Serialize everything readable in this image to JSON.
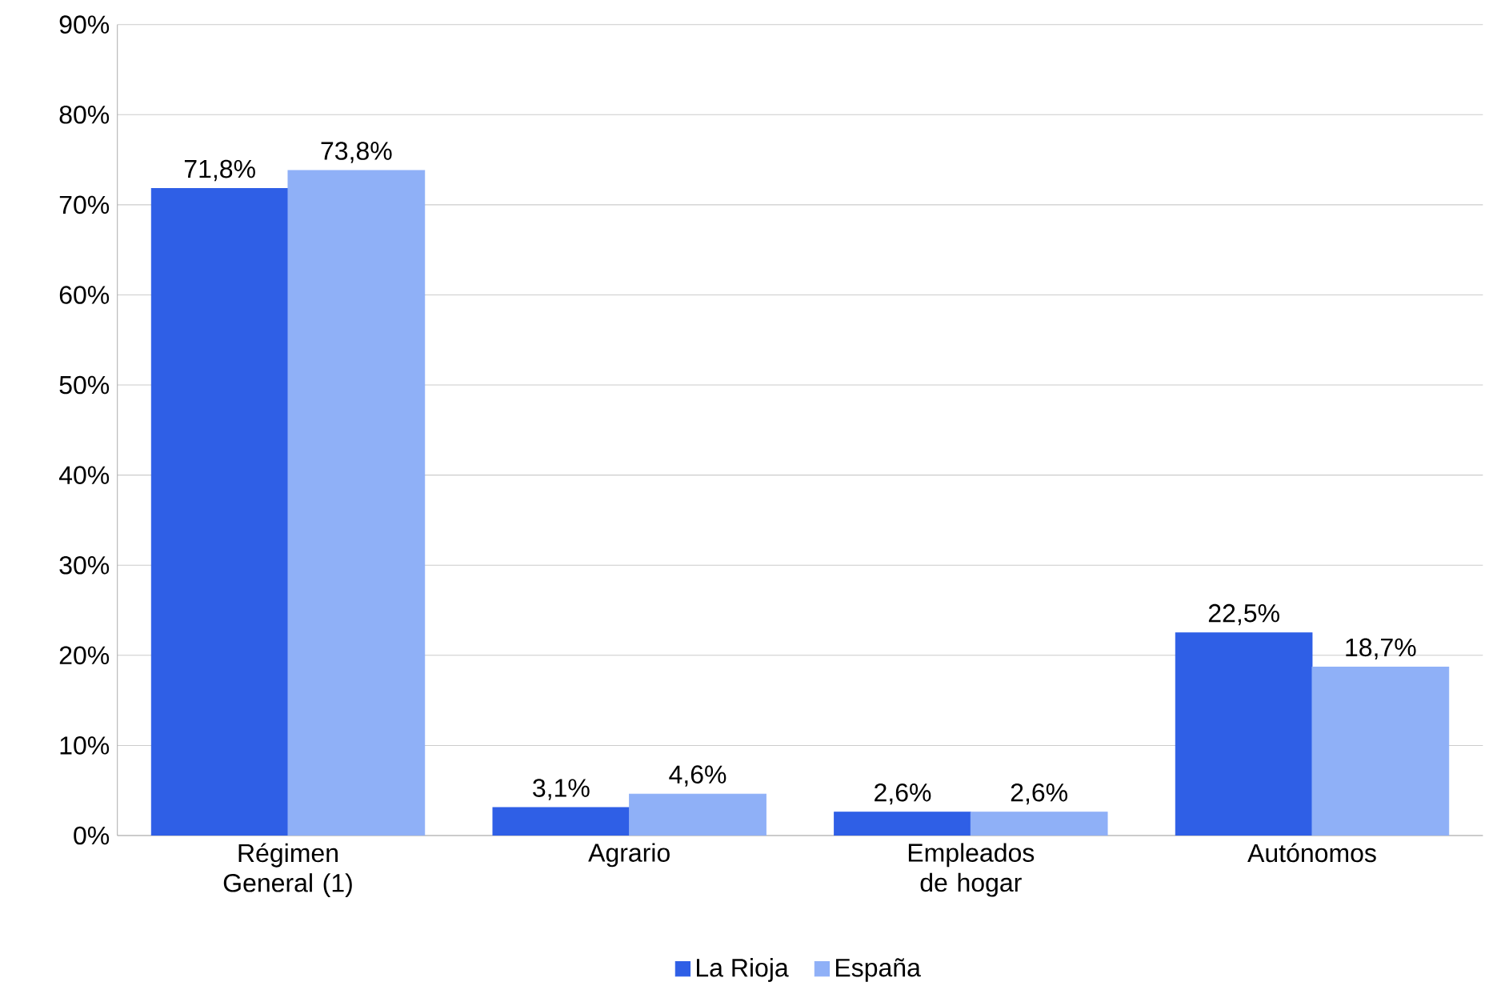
{
  "chart_data": {
    "type": "bar",
    "categories": [
      "Régimen General (1)",
      "Agrario",
      "Empleados de hogar",
      "Autónomos"
    ],
    "series": [
      {
        "name": "La Rioja",
        "color": "#2f5fe6",
        "values": [
          71.8,
          3.1,
          2.6,
          22.5
        ],
        "value_labels": [
          "71,8%",
          "3,1%",
          "2,6%",
          "22,5%"
        ]
      },
      {
        "name": "España",
        "color": "#8fb0f7",
        "values": [
          73.8,
          4.6,
          2.6,
          18.7
        ],
        "value_labels": [
          "73,8%",
          "4,6%",
          "2,6%",
          "18,7%"
        ]
      }
    ],
    "ylim": [
      0,
      90
    ],
    "yticks": [
      {
        "value": 0,
        "label": "0%"
      },
      {
        "value": 10,
        "label": "10%"
      },
      {
        "value": 20,
        "label": "20%"
      },
      {
        "value": 30,
        "label": "30%"
      },
      {
        "value": 40,
        "label": "40%"
      },
      {
        "value": 50,
        "label": "50%"
      },
      {
        "value": 60,
        "label": "60%"
      },
      {
        "value": 70,
        "label": "70%"
      },
      {
        "value": 80,
        "label": "80%"
      },
      {
        "value": 90,
        "label": "90%"
      }
    ],
    "grid": "y",
    "legend": "bottom"
  }
}
